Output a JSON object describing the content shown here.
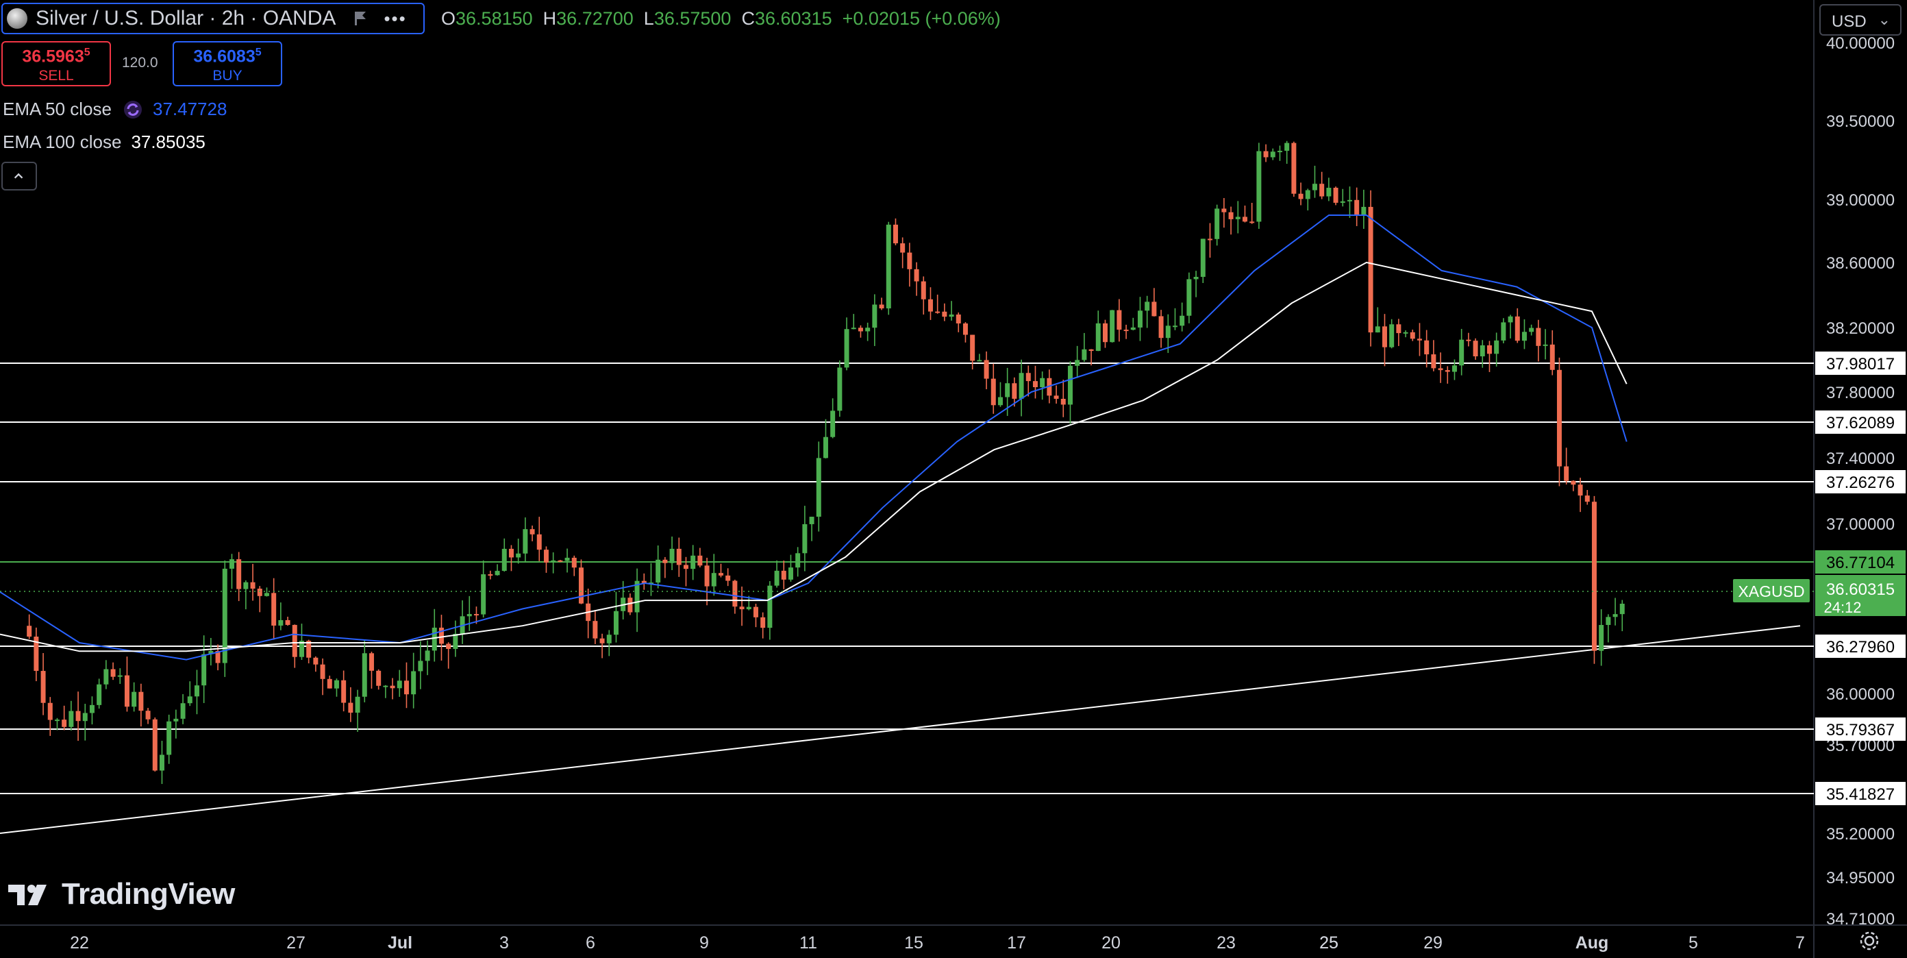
{
  "header": {
    "symbol_title": "Silver / U.S. Dollar · 2h · OANDA",
    "ohlc": {
      "o_label": "O",
      "o": "36.58150",
      "h_label": "H",
      "h": "36.72700",
      "l_label": "L",
      "l": "36.57500",
      "c_label": "C",
      "c": "36.60315",
      "change": "+0.02015 (+0.06%)"
    },
    "currency": "USD",
    "currency_caret": "⌄"
  },
  "trade": {
    "sell_price": "36.596",
    "sell_price_small": "3",
    "sell_price_sup": "5",
    "sell_label": "SELL",
    "spread": "120.0",
    "buy_price": "36.608",
    "buy_price_small": "3",
    "buy_price_sup": "5",
    "buy_label": "BUY"
  },
  "indicators": {
    "ema50_label": "EMA 50 close",
    "ema50_value": "37.47728",
    "ema100_label": "EMA 100 close",
    "ema100_value": "37.85035"
  },
  "brand": {
    "name": "TradingView"
  },
  "colors": {
    "up": "#4caf50",
    "down": "#ef6c50",
    "ema50": "#2962ff",
    "ema100": "#ffffff",
    "price_tag": "#4caf50",
    "resistance_green": "#4caf50"
  },
  "chart_data": {
    "type": "candlestick",
    "symbol": "XAGUSD",
    "timeframe": "2h",
    "ylim": [
      34.71,
      40.0
    ],
    "y_ticks": [
      "40.00000",
      "39.50000",
      "39.00000",
      "38.60000",
      "38.20000",
      "37.80000",
      "37.40000",
      "37.00000",
      "36.60000",
      "36.00000",
      "35.70000",
      "35.20000",
      "34.95000",
      "34.71000"
    ],
    "x_ticks": [
      "22",
      "25",
      "27",
      "Jul",
      "3",
      "6",
      "9",
      "11",
      "15",
      "17",
      "20",
      "23",
      "25",
      "29",
      "Aug",
      "5",
      "7"
    ],
    "last_price": {
      "label": "XAGUSD",
      "value": "36.60315",
      "countdown": "24:12"
    },
    "horizontal_levels": [
      {
        "value": 37.98017,
        "label": "37.98017",
        "color": "#ffffff"
      },
      {
        "value": 37.62089,
        "label": "37.62089",
        "color": "#ffffff"
      },
      {
        "value": 37.26276,
        "label": "37.26276",
        "color": "#ffffff"
      },
      {
        "value": 36.77104,
        "label": "36.77104",
        "color": "#4caf50"
      },
      {
        "value": 36.2796,
        "label": "36.27960",
        "color": "#ffffff"
      },
      {
        "value": 35.79367,
        "label": "35.79367",
        "color": "#ffffff"
      },
      {
        "value": 35.41827,
        "label": "35.41827",
        "color": "#ffffff"
      }
    ],
    "trendline": {
      "from": [
        "Jun 19",
        35.2
      ],
      "to": [
        "Aug 7",
        36.4
      ]
    },
    "price_path": [
      [
        "Jun 20",
        36.4
      ],
      [
        "Jun 21",
        35.8
      ],
      [
        "Jun 23",
        36.1
      ],
      [
        "Jun 24",
        35.8
      ],
      [
        "Jun 24",
        35.5
      ],
      [
        "Jun 25",
        36.0
      ],
      [
        "Jun 26",
        36.3
      ],
      [
        "Jun 26",
        36.8
      ],
      [
        "Jun 27",
        36.6
      ],
      [
        "Jun 28",
        36.3
      ],
      [
        "Jun 30",
        35.9
      ],
      [
        "Jun 30",
        36.2
      ],
      [
        "Jul 1",
        36.0
      ],
      [
        "Jul 2",
        36.4
      ],
      [
        "Jul 2",
        36.2
      ],
      [
        "Jul 3",
        36.6
      ],
      [
        "Jul 4",
        36.9
      ],
      [
        "Jul 5",
        36.8
      ],
      [
        "Jul 6",
        36.3
      ],
      [
        "Jul 7",
        36.7
      ],
      [
        "Jul 8",
        36.8
      ],
      [
        "Jul 9",
        36.6
      ],
      [
        "Jul 10",
        36.4
      ],
      [
        "Jul 10",
        36.6
      ],
      [
        "Jul 11",
        37.0
      ],
      [
        "Jul 12",
        38.1
      ],
      [
        "Jul 13",
        38.4
      ],
      [
        "Jul 13",
        39.0
      ],
      [
        "Jul 14",
        38.4
      ],
      [
        "Jul 15",
        38.2
      ],
      [
        "Jul 16",
        37.8
      ],
      [
        "Jul 16",
        37.7
      ],
      [
        "Jul 17",
        37.9
      ],
      [
        "Jul 18",
        37.8
      ],
      [
        "Jul 18",
        38.0
      ],
      [
        "Jul 19",
        38.2
      ],
      [
        "Jul 20",
        38.3
      ],
      [
        "Jul 21",
        38.1
      ],
      [
        "Jul 21",
        38.3
      ],
      [
        "Jul 22",
        38.9
      ],
      [
        "Jul 23",
        38.8
      ],
      [
        "Jul 23",
        39.3
      ],
      [
        "Jul 24",
        39.4
      ],
      [
        "Jul 24",
        39.1
      ],
      [
        "Jul 25",
        39.0
      ],
      [
        "Jul 26",
        38.9
      ],
      [
        "Jul 26",
        38.2
      ],
      [
        "Jul 27",
        38.1
      ],
      [
        "Jul 28",
        38.0
      ],
      [
        "Jul 29",
        38.1
      ],
      [
        "Jul 30",
        38.2
      ],
      [
        "Jul 31",
        38.0
      ],
      [
        "Jul 31",
        37.3
      ],
      [
        "Aug 1",
        37.1
      ],
      [
        "Aug 1",
        37.25
      ],
      [
        "Aug 1",
        36.3
      ],
      [
        "Aug 2",
        36.55
      ],
      [
        "Aug 2",
        36.7
      ],
      [
        "Aug 2",
        36.6
      ]
    ],
    "series": [
      {
        "name": "EMA 50 close",
        "values": [
          [
            "Jun 19",
            36.6
          ],
          [
            "Jun 22",
            36.3
          ],
          [
            "Jun 25",
            36.2
          ],
          [
            "Jun 28",
            36.35
          ],
          [
            "Jul 1",
            36.3
          ],
          [
            "Jul 4",
            36.5
          ],
          [
            "Jul 7",
            36.65
          ],
          [
            "Jul 10",
            36.55
          ],
          [
            "Jul 11",
            36.65
          ],
          [
            "Jul 13",
            37.1
          ],
          [
            "Jul 15",
            37.5
          ],
          [
            "Jul 17",
            37.8
          ],
          [
            "Jul 19",
            37.95
          ],
          [
            "Jul 21",
            38.1
          ],
          [
            "Jul 23",
            38.55
          ],
          [
            "Jul 25",
            38.9
          ],
          [
            "Jul 26",
            38.9
          ],
          [
            "Jul 28",
            38.55
          ],
          [
            "Jul 30",
            38.45
          ],
          [
            "Aug 1",
            38.2
          ],
          [
            "Aug 2",
            37.5
          ]
        ]
      },
      {
        "name": "EMA 100 close",
        "values": [
          [
            "Jun 19",
            36.35
          ],
          [
            "Jun 22",
            36.25
          ],
          [
            "Jun 25",
            36.25
          ],
          [
            "Jun 28",
            36.3
          ],
          [
            "Jul 1",
            36.3
          ],
          [
            "Jul 4",
            36.4
          ],
          [
            "Jul 7",
            36.55
          ],
          [
            "Jul 10",
            36.55
          ],
          [
            "Jul 12",
            36.8
          ],
          [
            "Jul 14",
            37.2
          ],
          [
            "Jul 16",
            37.45
          ],
          [
            "Jul 18",
            37.6
          ],
          [
            "Jul 20",
            37.75
          ],
          [
            "Jul 22",
            38.0
          ],
          [
            "Jul 24",
            38.35
          ],
          [
            "Jul 26",
            38.6
          ],
          [
            "Jul 28",
            38.5
          ],
          [
            "Jul 30",
            38.4
          ],
          [
            "Aug 1",
            38.3
          ],
          [
            "Aug 2",
            37.85
          ]
        ]
      }
    ]
  }
}
